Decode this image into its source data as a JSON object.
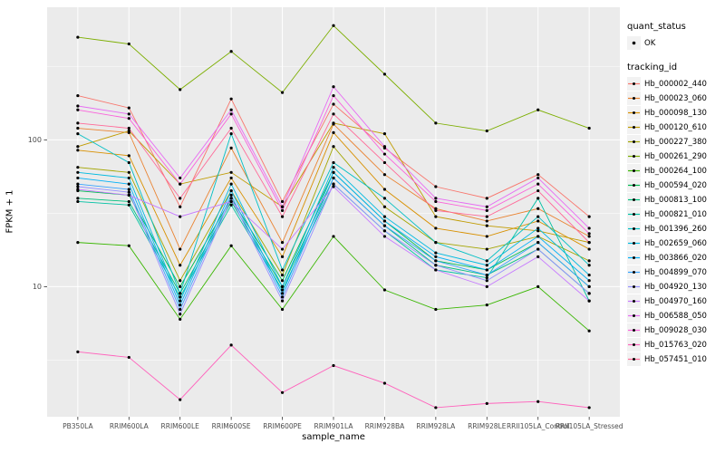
{
  "axes": {
    "x_label": "sample_name",
    "y_label": "FPKM + 1"
  },
  "legend": {
    "quant_status_title": "quant_status",
    "quant_status_items": [
      {
        "label": "OK"
      }
    ],
    "tracking_title": "tracking_id"
  },
  "chart_data": {
    "type": "line",
    "title": "",
    "xlabel": "sample_name",
    "ylabel": "FPKM + 1",
    "y_scale": "log10",
    "ylim": [
      1.3,
      800
    ],
    "grid": true,
    "legend_position": "right",
    "panel_color": "#EBEBEB",
    "gridline_color": "#FFFFFF",
    "point_color": "#000000",
    "y_major_breaks": [
      {
        "value": 100,
        "label": "100"
      },
      {
        "value": 10,
        "label": "10"
      }
    ],
    "y_minor_breaks": [
      3.1623,
      31.623,
      316.23
    ],
    "categories": [
      "PB350LA",
      "RRIM600LA",
      "RRIM600LE",
      "RRIM600SE",
      "RRIM600PE",
      "RRIM901LA",
      "RRIM928BA",
      "RRIM928LA",
      "RRIM928LE",
      "RRII105LA_Control",
      "RRII105LA_Stressed"
    ],
    "series": [
      {
        "name": "Hb_000002_440",
        "color": "#F8766D",
        "values": [
          200,
          165,
          35,
          190,
          38,
          175,
          88,
          48,
          40,
          58,
          30
        ]
      },
      {
        "name": "Hb_000023_060",
        "color": "#EA8331",
        "values": [
          120,
          112,
          18,
          88,
          20,
          128,
          58,
          34,
          28,
          34,
          22
        ]
      },
      {
        "name": "Hb_000098_130",
        "color": "#D89000",
        "values": [
          85,
          78,
          14,
          55,
          16,
          112,
          46,
          25,
          22,
          28,
          18
        ]
      },
      {
        "name": "Hb_000120_610",
        "color": "#C09B00",
        "values": [
          90,
          115,
          50,
          60,
          35,
          130,
          110,
          30,
          26,
          24,
          20
        ]
      },
      {
        "name": "Hb_000227_380",
        "color": "#A3A500",
        "values": [
          65,
          60,
          11,
          45,
          12,
          90,
          35,
          20,
          18,
          22,
          15
        ]
      },
      {
        "name": "Hb_000261_290",
        "color": "#7CAE00",
        "values": [
          500,
          450,
          220,
          400,
          210,
          600,
          280,
          130,
          115,
          160,
          120
        ]
      },
      {
        "name": "Hb_000264_100",
        "color": "#39B600",
        "values": [
          20,
          19,
          6,
          19,
          7,
          22,
          9.5,
          7,
          7.5,
          10,
          5
        ]
      },
      {
        "name": "Hb_000594_020",
        "color": "#00BB4E",
        "values": [
          45,
          42,
          10,
          40,
          11,
          60,
          28,
          15,
          13,
          20,
          10
        ]
      },
      {
        "name": "Hb_000813_100",
        "color": "#00BF7D",
        "values": [
          40,
          38,
          9,
          38,
          10,
          55,
          26,
          14,
          12,
          18,
          9
        ]
      },
      {
        "name": "Hb_000821_010",
        "color": "#00C1A3",
        "values": [
          38,
          36,
          8.5,
          36,
          9.5,
          50,
          24,
          13,
          11.5,
          40,
          8
        ]
      },
      {
        "name": "Hb_001396_260",
        "color": "#00BFC4",
        "values": [
          110,
          70,
          9,
          110,
          13,
          70,
          40,
          20,
          15,
          30,
          14
        ]
      },
      {
        "name": "Hb_002659_060",
        "color": "#00BAE0",
        "values": [
          60,
          55,
          8,
          50,
          10,
          65,
          30,
          17,
          14,
          25,
          12
        ]
      },
      {
        "name": "Hb_003866_020",
        "color": "#00B0F6",
        "values": [
          55,
          50,
          7.5,
          45,
          9,
          60,
          28,
          16,
          13,
          22,
          11
        ]
      },
      {
        "name": "Hb_004899_070",
        "color": "#35A2FF",
        "values": [
          50,
          46,
          7,
          42,
          8.5,
          55,
          26,
          15,
          12,
          20,
          10
        ]
      },
      {
        "name": "Hb_004920_130",
        "color": "#9590FF",
        "values": [
          48,
          44,
          6.5,
          40,
          8,
          50,
          24,
          14,
          11,
          18,
          9
        ]
      },
      {
        "name": "Hb_004970_160",
        "color": "#C77CFF",
        "values": [
          46,
          42,
          30,
          38,
          18,
          48,
          22,
          13,
          10,
          16,
          8
        ]
      },
      {
        "name": "Hb_006588_050",
        "color": "#E76BF3",
        "values": [
          170,
          150,
          55,
          160,
          35,
          230,
          90,
          40,
          35,
          55,
          25
        ]
      },
      {
        "name": "Hb_009028_030",
        "color": "#FA62DB",
        "values": [
          160,
          140,
          50,
          150,
          33,
          200,
          80,
          38,
          33,
          50,
          23
        ]
      },
      {
        "name": "Hb_015763_020",
        "color": "#FF62BC",
        "values": [
          3.6,
          3.3,
          1.7,
          4.0,
          1.9,
          2.9,
          2.2,
          1.5,
          1.6,
          1.65,
          1.5
        ]
      },
      {
        "name": "Hb_057451_010",
        "color": "#FF6A98",
        "values": [
          130,
          120,
          40,
          120,
          30,
          150,
          70,
          33,
          30,
          45,
          20
        ]
      }
    ]
  }
}
